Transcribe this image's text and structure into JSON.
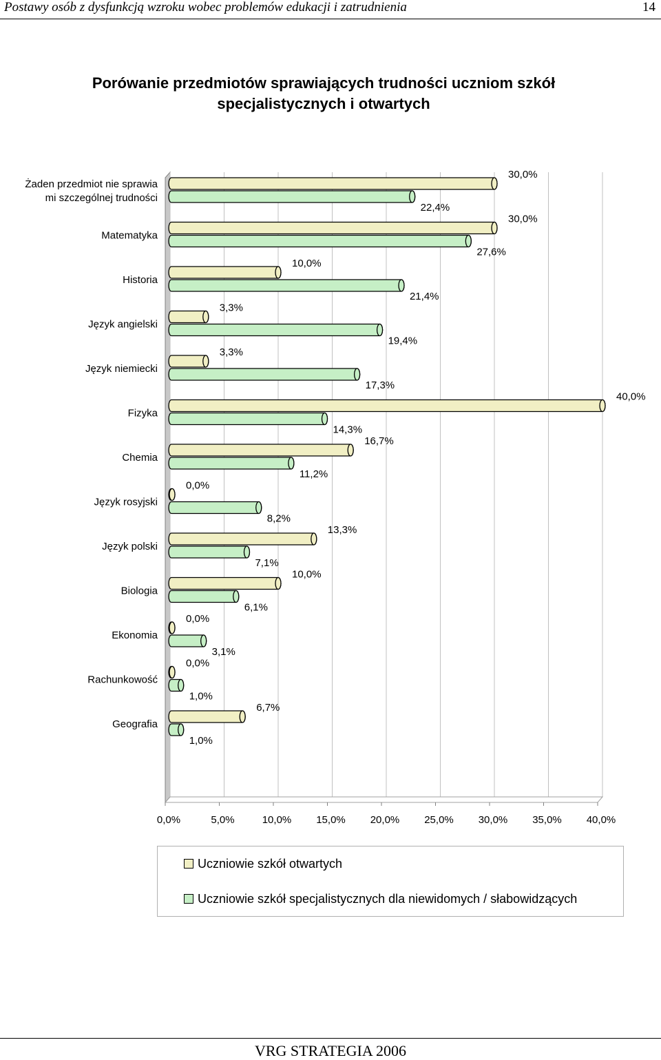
{
  "page": {
    "header_title": "Postawy osób z dysfunkcją wzroku wobec problemów edukacji i zatrudnienia",
    "page_number": "14",
    "footer": "VRG STRATEGIA 2006"
  },
  "chart_data": {
    "type": "bar",
    "orientation": "horizontal",
    "style": "3d-cylinder",
    "title": "Porówanie przedmiotów sprawiających trudności uczniom szkół specjalistycznych i otwartych",
    "categories": [
      [
        "Żaden przedmiot nie sprawia",
        "mi szczególnej trudności"
      ],
      [
        "Matematyka"
      ],
      [
        "Historia"
      ],
      [
        "Język angielski"
      ],
      [
        "Język niemiecki"
      ],
      [
        "Fizyka"
      ],
      [
        "Chemia"
      ],
      [
        "Język rosyjski"
      ],
      [
        "Język polski"
      ],
      [
        "Biologia"
      ],
      [
        "Ekonomia"
      ],
      [
        "Rachunkowość"
      ],
      [
        "Geografia"
      ]
    ],
    "series": [
      {
        "name": "Uczniowie szkół otwartych",
        "color": "#f1efc4",
        "values": [
          30.0,
          30.0,
          10.0,
          3.3,
          3.3,
          40.0,
          16.7,
          0.0,
          13.3,
          10.0,
          0.0,
          0.0,
          6.7
        ],
        "labels": [
          "30,0%",
          "30,0%",
          "10,0%",
          "3,3%",
          "3,3%",
          "40,0%",
          "16,7%",
          "0,0%",
          "13,3%",
          "10,0%",
          "0,0%",
          "0,0%",
          "6,7%"
        ]
      },
      {
        "name": "Uczniowie szkół specjalistycznych dla niewidomych / słabowidzących",
        "color": "#c6efc6",
        "values": [
          22.4,
          27.6,
          21.4,
          19.4,
          17.3,
          14.3,
          11.2,
          8.2,
          7.1,
          6.1,
          3.1,
          1.0,
          1.0
        ],
        "labels": [
          "22,4%",
          "27,6%",
          "21,4%",
          "19,4%",
          "17,3%",
          "14,3%",
          "11,2%",
          "8,2%",
          "7,1%",
          "6,1%",
          "3,1%",
          "1,0%",
          "1,0%"
        ]
      }
    ],
    "xlim": [
      0,
      40
    ],
    "x_ticks": [
      "0,0%",
      "5,0%",
      "10,0%",
      "15,0%",
      "20,0%",
      "25,0%",
      "30,0%",
      "35,0%",
      "40,0%"
    ],
    "grid": true,
    "legend_position": "bottom"
  },
  "legend": [
    {
      "label": "Uczniowie szkół otwartych",
      "color": "#f1efc4"
    },
    {
      "label": "Uczniowie szkół specjalistycznych dla niewidomych / słabowidzących",
      "color": "#c6efc6"
    }
  ]
}
